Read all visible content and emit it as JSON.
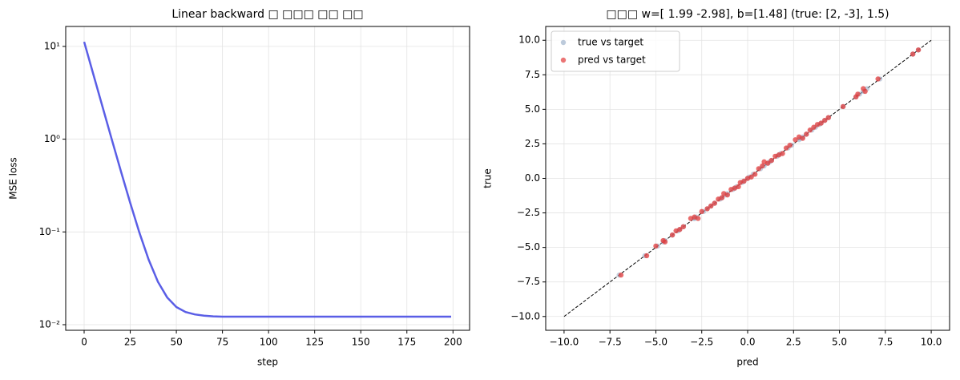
{
  "chart_data": [
    {
      "type": "line",
      "title": "Linear backward □ □□□ □□ □□",
      "xlabel": "step",
      "ylabel": "MSE loss",
      "x": [
        0,
        5,
        10,
        15,
        20,
        25,
        30,
        35,
        40,
        45,
        50,
        55,
        60,
        65,
        70,
        75,
        80,
        90,
        100,
        110,
        120,
        130,
        140,
        150,
        160,
        170,
        180,
        190,
        199
      ],
      "values": [
        11.2,
        4.98,
        2.22,
        0.99,
        0.446,
        0.205,
        0.0977,
        0.0501,
        0.029,
        0.0197,
        0.0155,
        0.0137,
        0.0129,
        0.0125,
        0.0123,
        0.0122,
        0.0122,
        0.0122,
        0.0122,
        0.0122,
        0.0122,
        0.0122,
        0.0122,
        0.0122,
        0.0122,
        0.0122,
        0.0122,
        0.0122,
        0.0122
      ],
      "color": "#5a5ee6",
      "yscale": "log",
      "grid": true,
      "xlim": [
        -10,
        209
      ],
      "xticks": [
        0,
        25,
        50,
        75,
        100,
        125,
        150,
        175,
        200
      ],
      "ylim": [
        0.0087,
        16.4
      ],
      "yticks": [
        {
          "value": 0.01,
          "label": "10⁻²"
        },
        {
          "value": 0.1,
          "label": "10⁻¹"
        },
        {
          "value": 1,
          "label": "10⁰"
        },
        {
          "value": 10,
          "label": "10¹"
        }
      ]
    },
    {
      "type": "scatter",
      "title": "□□□ w=[ 1.99 -2.98], b=[1.48] (true: [2, -3], 1.5)",
      "xlabel": "pred",
      "ylabel": "true",
      "grid": true,
      "legend": "upper left",
      "xlim": [
        -11,
        11
      ],
      "ylim": [
        -11,
        11
      ],
      "xticks": [
        {
          "value": -10,
          "label": "−10.0"
        },
        {
          "value": -7.5,
          "label": "−7.5"
        },
        {
          "value": -5,
          "label": "−5.0"
        },
        {
          "value": -2.5,
          "label": "−2.5"
        },
        {
          "value": 0,
          "label": "0.0"
        },
        {
          "value": 2.5,
          "label": "2.5"
        },
        {
          "value": 5,
          "label": "5.0"
        },
        {
          "value": 7.5,
          "label": "7.5"
        },
        {
          "value": 10,
          "label": "10.0"
        }
      ],
      "yticks": [
        {
          "value": -10,
          "label": "−10.0"
        },
        {
          "value": -7.5,
          "label": "−7.5"
        },
        {
          "value": -5,
          "label": "−5.0"
        },
        {
          "value": -2.5,
          "label": "−2.5"
        },
        {
          "value": 0,
          "label": "0.0"
        },
        {
          "value": 2.5,
          "label": "2.5"
        },
        {
          "value": 5,
          "label": "5.0"
        },
        {
          "value": 7.5,
          "label": "7.5"
        },
        {
          "value": 10,
          "label": "10.0"
        }
      ],
      "diagonal": {
        "x": [
          -10,
          10
        ],
        "y": [
          -10,
          10
        ]
      },
      "series": [
        {
          "name": "true vs target",
          "color": "#9fb3cc",
          "x": [
            -7.0,
            -5.6,
            -4.9,
            -4.5,
            -4.6,
            -4.1,
            -3.8,
            -3.7,
            -3.5,
            -2.9,
            -2.8,
            -2.9,
            -2.4,
            -2.2,
            -2.0,
            -1.8,
            -1.5,
            -1.4,
            -1.1,
            -1.2,
            -0.8,
            -0.7,
            -0.6,
            -0.3,
            -0.2,
            0.0,
            0.1,
            0.3,
            0.7,
            0.9,
            1.2,
            1.1,
            1.3,
            1.6,
            1.7,
            1.8,
            2.2,
            2.4,
            2.8,
            3.0,
            2.9,
            3.2,
            3.5,
            3.7,
            3.9,
            4.0,
            4.2,
            4.4,
            5.2,
            5.9,
            6.1,
            6.5,
            6.3,
            7.2,
            9.0,
            9.3
          ],
          "values": [
            -7.0,
            -5.6,
            -4.9,
            -4.5,
            -4.6,
            -4.1,
            -3.8,
            -3.7,
            -3.5,
            -2.9,
            -2.8,
            -2.9,
            -2.4,
            -2.2,
            -2.0,
            -1.8,
            -1.5,
            -1.4,
            -1.1,
            -1.2,
            -0.8,
            -0.7,
            -0.6,
            -0.3,
            -0.2,
            0.0,
            0.1,
            0.3,
            0.7,
            0.9,
            1.2,
            1.1,
            1.3,
            1.6,
            1.7,
            1.8,
            2.2,
            2.4,
            2.8,
            3.0,
            2.9,
            3.2,
            3.5,
            3.7,
            3.9,
            4.0,
            4.2,
            4.4,
            5.2,
            5.9,
            6.1,
            6.5,
            6.3,
            7.2,
            9.0,
            9.3
          ]
        },
        {
          "name": "pred vs target",
          "color": "#e23b3b",
          "x": [
            -6.9,
            -5.5,
            -5.0,
            -4.6,
            -4.5,
            -4.1,
            -3.9,
            -3.7,
            -3.5,
            -3.1,
            -2.9,
            -2.7,
            -2.5,
            -2.2,
            -2.0,
            -1.8,
            -1.6,
            -1.4,
            -1.3,
            -1.1,
            -0.9,
            -0.7,
            -0.5,
            -0.4,
            -0.2,
            0.0,
            0.2,
            0.4,
            0.6,
            0.8,
            0.9,
            1.1,
            1.3,
            1.5,
            1.7,
            1.9,
            2.1,
            2.3,
            2.6,
            2.8,
            3.0,
            3.2,
            3.4,
            3.6,
            3.8,
            4.0,
            4.2,
            4.4,
            5.2,
            5.9,
            6.0,
            6.3,
            6.4,
            7.1,
            9.0,
            9.3
          ],
          "values": [
            -7.0,
            -5.6,
            -4.9,
            -4.5,
            -4.6,
            -4.1,
            -3.8,
            -3.7,
            -3.5,
            -2.9,
            -2.8,
            -2.9,
            -2.4,
            -2.2,
            -2.0,
            -1.8,
            -1.5,
            -1.4,
            -1.1,
            -1.2,
            -0.8,
            -0.7,
            -0.6,
            -0.3,
            -0.2,
            0.0,
            0.1,
            0.3,
            0.7,
            0.9,
            1.2,
            1.1,
            1.3,
            1.6,
            1.7,
            1.8,
            2.2,
            2.4,
            2.8,
            3.0,
            2.9,
            3.2,
            3.5,
            3.7,
            3.9,
            4.0,
            4.2,
            4.4,
            5.2,
            5.9,
            6.1,
            6.5,
            6.3,
            7.2,
            9.0,
            9.3
          ]
        }
      ]
    }
  ]
}
